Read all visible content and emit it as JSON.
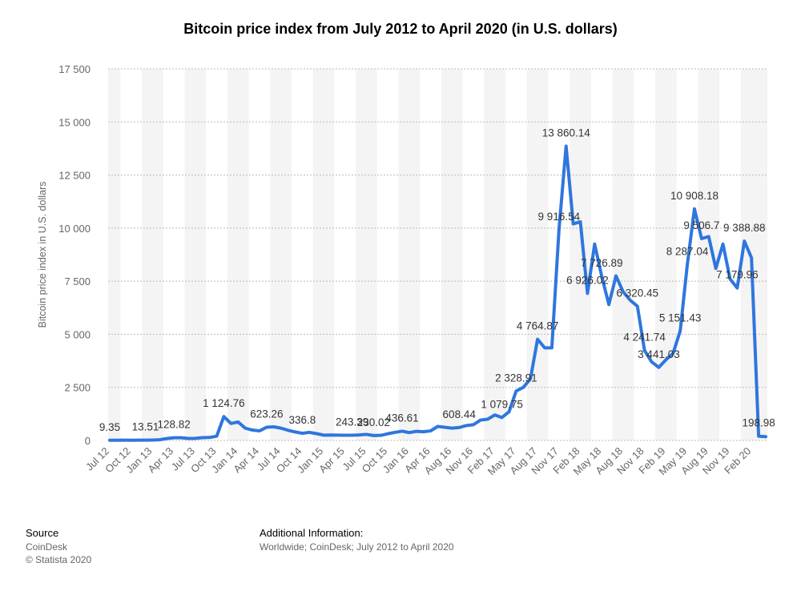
{
  "chart_data": {
    "type": "line",
    "title": "Bitcoin price index from July 2012 to April 2020 (in U.S. dollars)",
    "y_label": "Bitcoin price index in U.S. dollars",
    "categories": [
      "Jul 12",
      null,
      null,
      "Oct 12",
      null,
      null,
      "Jan 13",
      null,
      null,
      "Apr 13",
      null,
      null,
      "Jul 13",
      null,
      null,
      "Oct 13",
      null,
      null,
      "Jan 14",
      null,
      null,
      "Apr 14",
      null,
      null,
      "Jul 14",
      null,
      null,
      "Oct 14",
      null,
      null,
      "Jan 15",
      null,
      null,
      "Apr 15",
      null,
      null,
      "Jul 15",
      null,
      null,
      "Oct 15",
      null,
      null,
      "Jan 16",
      null,
      null,
      "Apr 16",
      null,
      null,
      "Aug 16",
      null,
      null,
      "Nov 16",
      null,
      null,
      "Feb 17",
      null,
      null,
      "May 17",
      null,
      null,
      "Aug 17",
      null,
      null,
      "Nov 17",
      null,
      null,
      "Feb 18",
      null,
      null,
      "May 18",
      null,
      null,
      "Aug 18",
      null,
      null,
      "Nov 18",
      null,
      null,
      "Feb 19",
      null,
      null,
      "May 19",
      null,
      null,
      "Aug 19",
      null,
      null,
      "Nov 19",
      null,
      null,
      "Feb 20",
      null,
      null
    ],
    "series": [
      {
        "name": "Bitcoin price index",
        "color": "#2f76de",
        "values": [
          9.35,
          10,
          12,
          11.5,
          12,
          13.51,
          20,
          33,
          90,
          128.82,
          129,
          95,
          100,
          130,
          140,
          200,
          1124.76,
          800,
          870,
          580,
          490,
          450,
          623.26,
          640,
          580,
          480,
          400,
          336.8,
          380,
          320,
          250,
          255,
          250,
          245,
          243.39,
          260,
          285,
          230.02,
          240,
          315,
          380,
          436.61,
          370,
          430,
          410,
          450,
          660,
          620,
          580,
          608.44,
          700,
          740,
          960,
          1000,
          1200,
          1079.75,
          1350,
          2328.91,
          2500,
          2900,
          4764.87,
          4360,
          4360,
          9916.54,
          13860.14,
          10200,
          10300,
          6926.02,
          9250,
          7726.89,
          6400,
          7750,
          7000,
          6600,
          6320.45,
          4241.74,
          3700,
          3441.03,
          3800,
          4100,
          5151.43,
          8287.04,
          10908.18,
          9506.7,
          9600,
          8100,
          9250,
          7600,
          7179.96,
          9388.88,
          8600,
          198.98,
          180
        ],
        "value_labels": [
          "9.35",
          null,
          null,
          null,
          null,
          "13.51",
          null,
          null,
          null,
          "128.82",
          null,
          null,
          null,
          null,
          null,
          null,
          "1 124.76",
          null,
          null,
          null,
          null,
          null,
          "623.26",
          null,
          null,
          null,
          null,
          "336.8",
          null,
          null,
          null,
          null,
          null,
          null,
          "243.39",
          null,
          null,
          "230.02",
          null,
          null,
          null,
          "436.61",
          null,
          null,
          null,
          null,
          null,
          null,
          null,
          "608.44",
          null,
          null,
          null,
          null,
          null,
          "1 079.75",
          null,
          "2 328.91",
          null,
          null,
          "4 764.87",
          null,
          null,
          "9 916.54",
          "13 860.14",
          null,
          null,
          "6 926.02",
          null,
          "7 726.89",
          null,
          null,
          null,
          null,
          "6 320.45",
          "4 241.74",
          null,
          "3 441.03",
          null,
          null,
          "5 151.43",
          "8 287.04",
          "10 908.18",
          "9 506.7",
          null,
          null,
          null,
          null,
          "7 179.96",
          "9 388.88",
          null,
          "198.98",
          null
        ]
      }
    ],
    "ylim": [
      0,
      17500
    ],
    "yticks": [
      0,
      {
        "value": 2500,
        "label": "2 500"
      },
      {
        "value": 5000,
        "label": "5 000"
      },
      {
        "value": 7500,
        "label": "7 500"
      },
      {
        "value": 10000,
        "label": "10 000"
      },
      {
        "value": 12500,
        "label": "12 500"
      },
      {
        "value": 15000,
        "label": "15 000"
      },
      {
        "value": 17500,
        "label": "17 500"
      }
    ],
    "grid": true
  },
  "footer": {
    "source_title": "Source",
    "source": "CoinDesk",
    "copyright": "© Statista 2020",
    "info_title": "Additional Information:",
    "info": "Worldwide; CoinDesk; July 2012 to April 2020"
  }
}
